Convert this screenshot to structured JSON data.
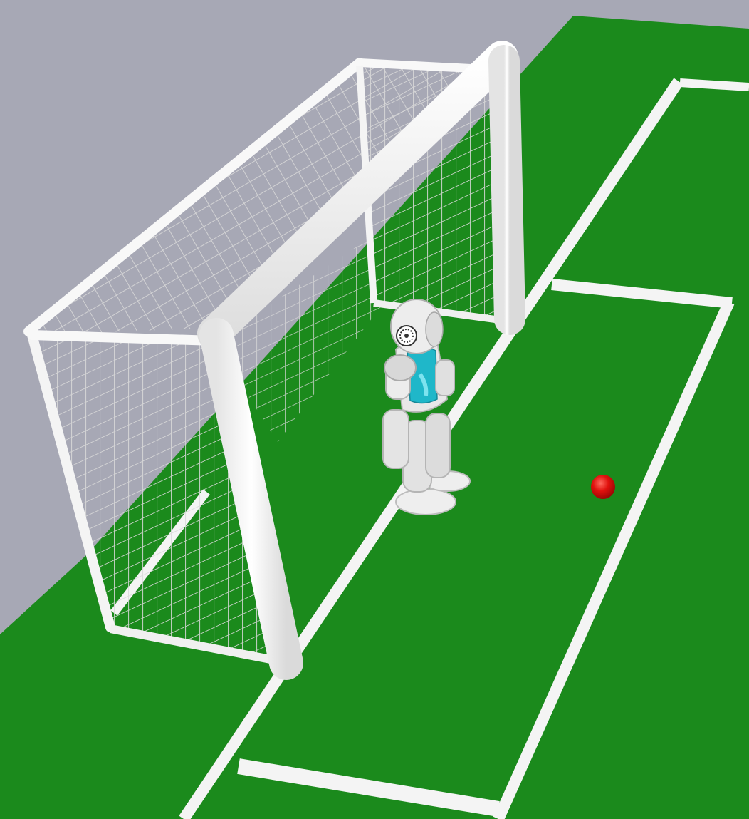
{
  "scene": {
    "colors": {
      "sky": "#a7a8b5",
      "field": "#1b8a1c",
      "line": "#f4f4f4",
      "goal": "#fbfbfb",
      "net": "#d9d9d9",
      "robot_body": "#e6e6e6",
      "robot_jersey": "#1fb7c9",
      "ball": "#e0110d"
    },
    "objects": [
      "soccer-field",
      "field-lines",
      "goal",
      "goal-net",
      "humanoid-robot",
      "ball"
    ]
  }
}
